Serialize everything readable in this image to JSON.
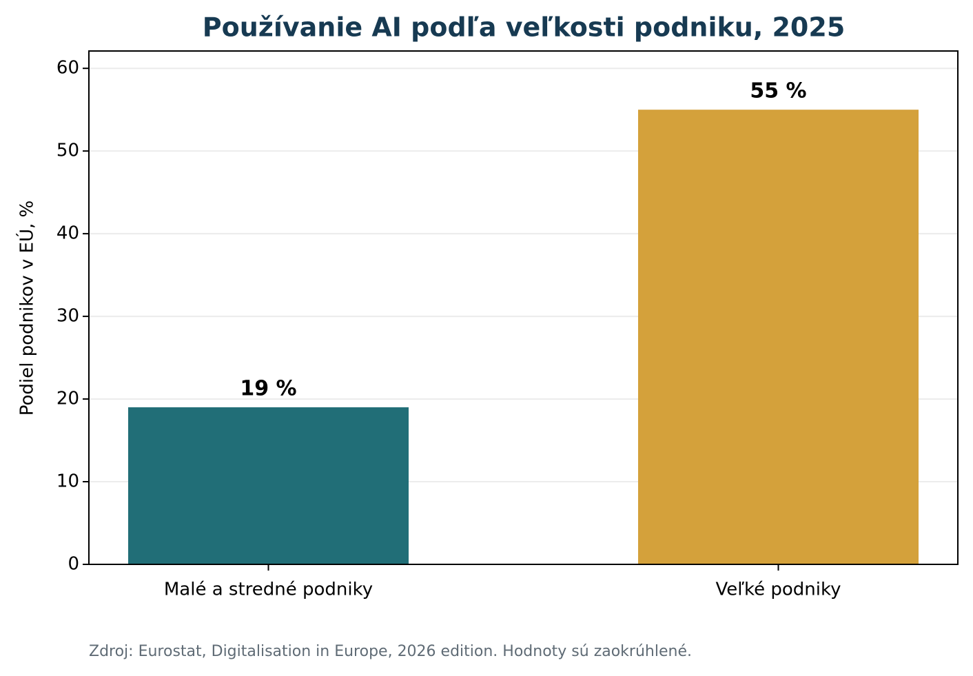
{
  "chart_data": {
    "type": "bar",
    "title": "Používanie AI podľa veľkosti podniku, 2025",
    "y_label": "Podiel podnikov v EÚ, %",
    "categories": [
      "Malé a stredné podniky",
      "Veľké podniky"
    ],
    "values": [
      19,
      55
    ],
    "value_labels": [
      "19 %",
      "55 %"
    ],
    "colors": [
      "#216e77",
      "#d4a13b"
    ],
    "ylim": [
      0,
      62.1
    ],
    "yticks": [
      0,
      10,
      20,
      30,
      40,
      50,
      60
    ],
    "grid": true,
    "source": "Zdroj: Eurostat, Digitalisation in Europe, 2026 edition. Hodnoty sú zaokrúhlené."
  }
}
